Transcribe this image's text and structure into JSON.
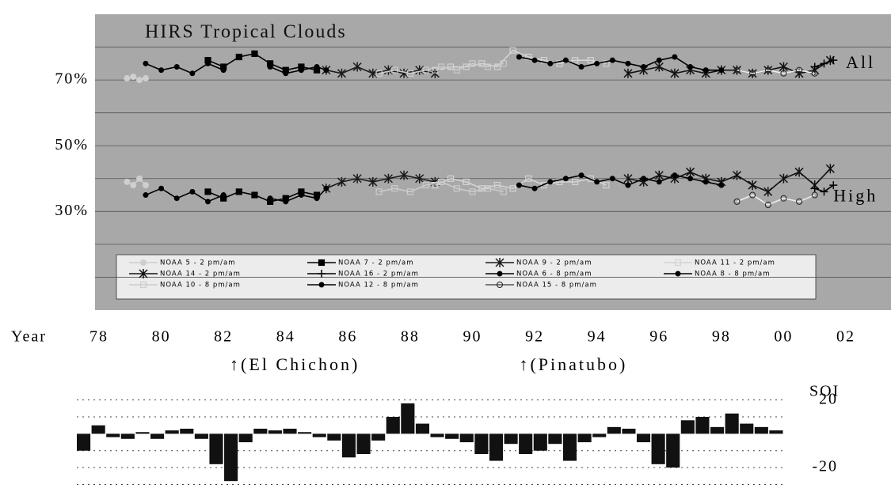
{
  "chart_data": [
    {
      "type": "line",
      "title": "HIRS Tropical Clouds",
      "x_label": "Year",
      "annotations": [
        "All",
        "High",
        "↑(El Chichon)",
        "↑(Pinatubo)"
      ],
      "annotation_x": [
        2002.0,
        2001.6,
        1982.2,
        1991.5
      ],
      "annotation_y": [
        70,
        30,
        -8.5,
        -8.5
      ],
      "xlim": [
        1978,
        2002
      ],
      "ylim": [
        0,
        90
      ],
      "xticks": [
        {
          "value": 1978,
          "label": "78"
        },
        {
          "value": 1980,
          "label": "80"
        },
        {
          "value": 1982,
          "label": "82"
        },
        {
          "value": 1984,
          "label": "84"
        },
        {
          "value": 1986,
          "label": "86"
        },
        {
          "value": 1988,
          "label": "88"
        },
        {
          "value": 1990,
          "label": "90"
        },
        {
          "value": 1992,
          "label": "92"
        },
        {
          "value": 1994,
          "label": "94"
        },
        {
          "value": 1996,
          "label": "96"
        },
        {
          "value": 1998,
          "label": "98"
        },
        {
          "value": 2000,
          "label": "00"
        },
        {
          "value": 2002,
          "label": "02"
        }
      ],
      "yticks": [
        {
          "value": 70,
          "label": "70%"
        },
        {
          "value": 50,
          "label": "50%"
        },
        {
          "value": 30,
          "label": "30%"
        }
      ],
      "ygrid": [
        10,
        20,
        30,
        40,
        50,
        60,
        70,
        80
      ],
      "background": "#a8a8a8",
      "series": [
        {
          "name": "NOAA 5 - 2 pm/am",
          "color": "#cfcfcf",
          "marker": "circle",
          "x": [
            1978.9,
            1979.1,
            1979.3,
            1979.5
          ],
          "all": [
            70.5,
            71,
            70,
            70.5
          ],
          "high": [
            39,
            38,
            40,
            38
          ]
        },
        {
          "name": "NOAA 7 - 2 pm/am",
          "color": "#000000",
          "marker": "square",
          "x": [
            1981.5,
            1982,
            1982.5,
            1983,
            1983.5,
            1984,
            1984.5,
            1985
          ],
          "all": [
            76,
            74,
            77,
            78,
            75,
            73,
            74,
            73
          ],
          "high": [
            36,
            34,
            36,
            35,
            33,
            34,
            36,
            35
          ]
        },
        {
          "name": "NOAA 9 - 2 pm/am",
          "color": "#1a1a1a",
          "marker": "star",
          "x": [
            1985.3,
            1985.8,
            1986.3,
            1986.8,
            1987.3,
            1987.8,
            1988.3,
            1988.8
          ],
          "all": [
            73,
            72,
            74,
            72,
            73,
            72,
            73,
            72
          ],
          "high": [
            37,
            39,
            40,
            39,
            40,
            41,
            40,
            39
          ]
        },
        {
          "name": "NOAA 11 - 2 pm/am",
          "color": "#d4d4d4",
          "marker": "open-square",
          "x": [
            1988.8,
            1989.3,
            1989.8,
            1990.3,
            1990.8,
            1991.3,
            1991.8,
            1992.3,
            1992.8,
            1993.3,
            1993.8,
            1994.3
          ],
          "all": [
            73,
            74,
            74,
            75,
            74,
            79,
            77,
            76,
            75,
            76,
            76,
            75
          ],
          "high": [
            38,
            40,
            39,
            37,
            38,
            37,
            40,
            38,
            39,
            39,
            40,
            38
          ]
        },
        {
          "name": "NOAA 14 - 2 pm/am",
          "color": "#111111",
          "marker": "star",
          "x": [
            1995,
            1995.5,
            1996,
            1996.5,
            1997,
            1997.5,
            1998,
            1998.5,
            1999,
            1999.5,
            2000,
            2000.5,
            2001,
            2001.5
          ],
          "all": [
            72,
            73,
            74,
            72,
            73,
            72,
            73,
            73,
            72,
            73,
            74,
            72,
            73,
            76
          ],
          "high": [
            40,
            39,
            41,
            40,
            42,
            40,
            39,
            41,
            38,
            36,
            40,
            42,
            38,
            43
          ]
        },
        {
          "name": "NOAA 16 - 2 pm/am",
          "color": "#000000",
          "marker": "plus",
          "x": [
            2001,
            2001.3,
            2001.6
          ],
          "all": [
            74,
            75,
            76
          ],
          "high": [
            37,
            36,
            38
          ]
        },
        {
          "name": "NOAA 6 - 8 pm/am",
          "color": "#000000",
          "marker": "dot",
          "x": [
            1979.5,
            1980,
            1980.5,
            1981,
            1981.5,
            1982
          ],
          "all": [
            75,
            73,
            74,
            72,
            75,
            73
          ],
          "high": [
            35,
            37,
            34,
            36,
            33,
            35
          ]
        },
        {
          "name": "NOAA 8 - 8 pm/am",
          "color": "#000000",
          "marker": "dot",
          "x": [
            1983.5,
            1984,
            1984.5,
            1985,
            1985.3
          ],
          "all": [
            74,
            72,
            73,
            74,
            73
          ],
          "high": [
            34,
            33,
            35,
            34,
            37
          ]
        },
        {
          "name": "NOAA 10 - 8 pm/am",
          "color": "#cccccc",
          "marker": "open-square",
          "x": [
            1987,
            1987.5,
            1988,
            1988.5,
            1989,
            1989.5,
            1990,
            1990.5,
            1991
          ],
          "all": [
            72,
            73,
            72,
            73,
            74,
            73,
            75,
            74,
            75
          ],
          "high": [
            36,
            37,
            36,
            38,
            39,
            37,
            36,
            37,
            36
          ]
        },
        {
          "name": "NOAA 12 - 8 pm/am",
          "color": "#000000",
          "marker": "dot",
          "x": [
            1991.5,
            1992,
            1992.5,
            1993,
            1993.5,
            1994,
            1994.5,
            1995,
            1995.5,
            1996,
            1996.5,
            1997,
            1997.5,
            1998
          ],
          "all": [
            77,
            76,
            75,
            76,
            74,
            75,
            76,
            75,
            74,
            76,
            77,
            74,
            73,
            73
          ],
          "high": [
            38,
            37,
            39,
            40,
            41,
            39,
            40,
            38,
            40,
            39,
            41,
            40,
            39,
            38
          ]
        },
        {
          "name": "NOAA 15 - 8 pm/am",
          "color": "#eeeeee",
          "marker": "open-circle",
          "x": [
            1998.5,
            1999,
            1999.5,
            2000,
            2000.5,
            2001
          ],
          "all": [
            73,
            72,
            73,
            72,
            73,
            72
          ],
          "high": [
            33,
            35,
            32,
            34,
            33,
            35
          ]
        }
      ]
    },
    {
      "type": "bar",
      "y_label": "SOI",
      "color": "#111111",
      "xlim": [
        1978,
        2002
      ],
      "ylim": [
        -34,
        25
      ],
      "yticks": [
        20,
        -20
      ],
      "ygrid": [
        20,
        10,
        -10,
        -20,
        -30
      ],
      "x": [
        1978,
        1978.5,
        1979,
        1979.5,
        1980,
        1980.5,
        1981,
        1981.5,
        1982,
        1982.5,
        1983,
        1983.5,
        1984,
        1984.5,
        1985,
        1985.5,
        1986,
        1986.5,
        1987,
        1987.5,
        1988,
        1988.5,
        1989,
        1989.5,
        1990,
        1990.5,
        1991,
        1991.5,
        1992,
        1992.5,
        1993,
        1993.5,
        1994,
        1994.5,
        1995,
        1995.5,
        1996,
        1996.5,
        1997,
        1997.5,
        1998,
        1998.5,
        1999,
        1999.5,
        2000,
        2000.5,
        2001,
        2001.5
      ],
      "values": [
        -10,
        5,
        -2,
        -3,
        1,
        -3,
        2,
        3,
        -3,
        -18,
        -28,
        -5,
        3,
        2,
        3,
        1,
        -2,
        -4,
        -14,
        -12,
        -4,
        10,
        18,
        6,
        -2,
        -3,
        -5,
        -12,
        -16,
        -6,
        -12,
        -10,
        -6,
        -16,
        -5,
        -2,
        4,
        3,
        -5,
        -18,
        -20,
        8,
        10,
        4,
        12,
        6,
        4,
        2
      ]
    }
  ]
}
